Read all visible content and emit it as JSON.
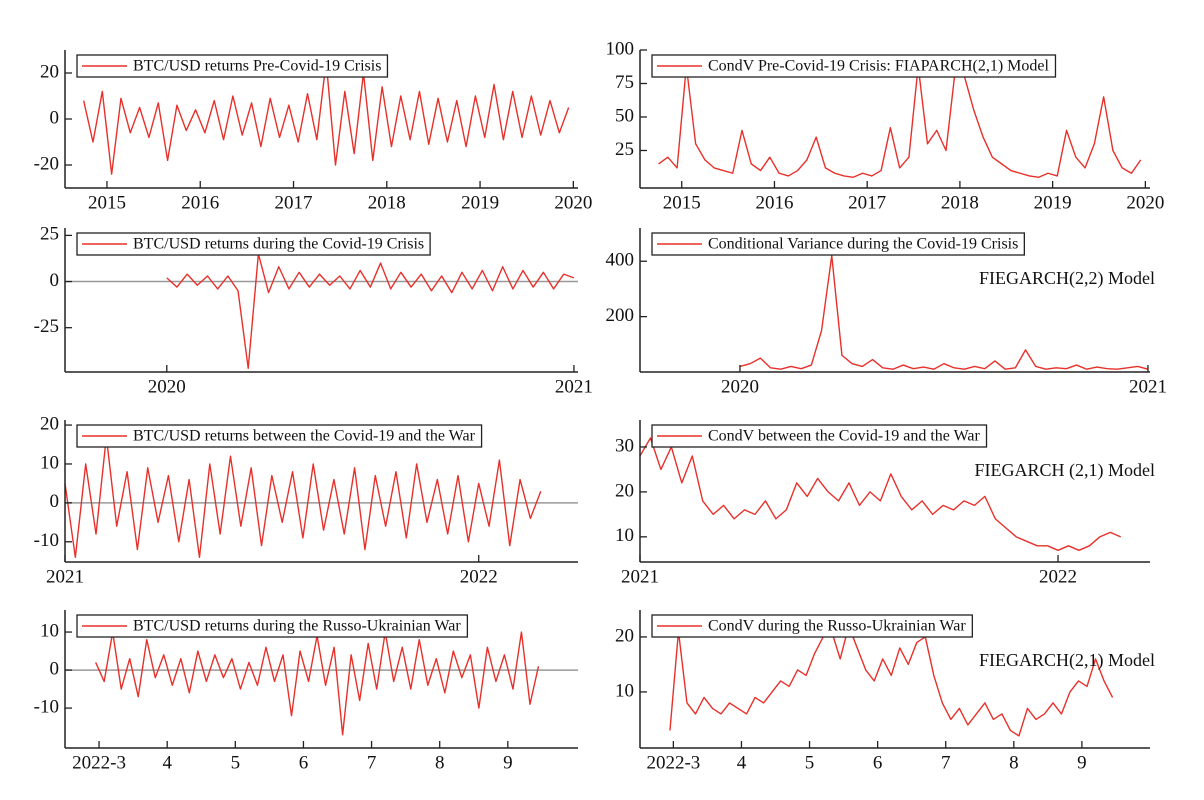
{
  "chart_data": [
    {
      "type": "line",
      "x": [
        2014.75,
        2014.85,
        2014.95,
        2015.05,
        2015.15,
        2015.25,
        2015.35,
        2015.45,
        2015.55,
        2015.65,
        2015.75,
        2015.85,
        2015.95,
        2016.05,
        2016.15,
        2016.25,
        2016.35,
        2016.45,
        2016.55,
        2016.65,
        2016.75,
        2016.85,
        2016.95,
        2017.05,
        2017.15,
        2017.25,
        2017.35,
        2017.45,
        2017.55,
        2017.65,
        2017.75,
        2017.85,
        2017.95,
        2018.05,
        2018.15,
        2018.25,
        2018.35,
        2018.45,
        2018.55,
        2018.65,
        2018.75,
        2018.85,
        2018.95,
        2019.05,
        2019.15,
        2019.25,
        2019.35,
        2019.45,
        2019.55,
        2019.65,
        2019.75,
        2019.85,
        2019.95
      ],
      "series": [
        {
          "name": "BTC/USD returns Pre-Covid-19 Crisis",
          "color": "#e8302a",
          "values": [
            8,
            -10,
            12,
            -24,
            9,
            -6,
            5,
            -8,
            7,
            -18,
            6,
            -5,
            4,
            -6,
            8,
            -9,
            10,
            -7,
            7,
            -12,
            9,
            -8,
            6,
            -10,
            11,
            -9,
            25,
            -20,
            12,
            -15,
            20,
            -18,
            14,
            -12,
            10,
            -9,
            12,
            -11,
            9,
            -10,
            8,
            -12,
            10,
            -8,
            15,
            -9,
            12,
            -8,
            10,
            -7,
            8,
            -6,
            5
          ]
        }
      ],
      "xlim": [
        2014.55,
        2020.05
      ],
      "xticks": [
        2015,
        2016,
        2017,
        2018,
        2019,
        2020
      ],
      "ylim": [
        -30,
        30
      ],
      "yticks": [
        -20,
        0,
        20
      ],
      "zero_line": false
    },
    {
      "type": "line",
      "x": [
        2014.75,
        2014.85,
        2014.95,
        2015.05,
        2015.15,
        2015.25,
        2015.35,
        2015.45,
        2015.55,
        2015.65,
        2015.75,
        2015.85,
        2015.95,
        2016.05,
        2016.15,
        2016.25,
        2016.35,
        2016.45,
        2016.55,
        2016.65,
        2016.75,
        2016.85,
        2016.95,
        2017.05,
        2017.15,
        2017.25,
        2017.35,
        2017.45,
        2017.55,
        2017.65,
        2017.75,
        2017.85,
        2017.95,
        2018.05,
        2018.15,
        2018.25,
        2018.35,
        2018.45,
        2018.55,
        2018.65,
        2018.75,
        2018.85,
        2018.95,
        2019.05,
        2019.15,
        2019.25,
        2019.35,
        2019.45,
        2019.55,
        2019.65,
        2019.75,
        2019.85,
        2019.95
      ],
      "series": [
        {
          "name": "CondV Pre-Covid-19 Crisis: FIAPARCH(2,1) Model",
          "color": "#e8302a",
          "values": [
            15,
            20,
            12,
            88,
            30,
            18,
            12,
            10,
            8,
            40,
            15,
            10,
            20,
            8,
            6,
            10,
            18,
            35,
            12,
            8,
            6,
            5,
            8,
            6,
            10,
            42,
            12,
            20,
            88,
            30,
            40,
            25,
            85,
            80,
            55,
            35,
            20,
            15,
            10,
            8,
            6,
            5,
            8,
            6,
            40,
            20,
            12,
            30,
            65,
            25,
            12,
            8,
            18
          ]
        }
      ],
      "xlim": [
        2014.55,
        2020.05
      ],
      "xticks": [
        2015,
        2016,
        2017,
        2018,
        2019,
        2020
      ],
      "ylim": [
        -3,
        100
      ],
      "yticks": [
        25,
        50,
        75,
        100
      ],
      "zero_line": false
    },
    {
      "type": "line",
      "x": [
        2020,
        2020.025,
        2020.05,
        2020.075,
        2020.1,
        2020.125,
        2020.15,
        2020.175,
        2020.2,
        2020.225,
        2020.25,
        2020.275,
        2020.3,
        2020.325,
        2020.35,
        2020.375,
        2020.4,
        2020.425,
        2020.45,
        2020.475,
        2020.5,
        2020.525,
        2020.55,
        2020.575,
        2020.6,
        2020.625,
        2020.65,
        2020.675,
        2020.7,
        2020.725,
        2020.75,
        2020.775,
        2020.8,
        2020.825,
        2020.85,
        2020.875,
        2020.9,
        2020.925,
        2020.95,
        2020.975,
        2021
      ],
      "series": [
        {
          "name": "BTC/USD returns during the Covid-19 Crisis",
          "color": "#e8302a",
          "values": [
            2,
            -3,
            4,
            -2,
            3,
            -4,
            3,
            -5,
            -47,
            15,
            -6,
            8,
            -4,
            5,
            -3,
            4,
            -2,
            3,
            -4,
            6,
            -3,
            10,
            -4,
            5,
            -3,
            4,
            -5,
            3,
            -6,
            5,
            -4,
            6,
            -5,
            8,
            -4,
            6,
            -3,
            5,
            -4,
            4,
            2
          ]
        }
      ],
      "xlim": [
        2019.75,
        2021.01
      ],
      "xticks": [
        2020,
        2021
      ],
      "ylim": [
        -49,
        29
      ],
      "yticks": [
        -25,
        0,
        25
      ],
      "zero_line": true
    },
    {
      "type": "line",
      "x": [
        2020,
        2020.025,
        2020.05,
        2020.075,
        2020.1,
        2020.125,
        2020.15,
        2020.175,
        2020.2,
        2020.225,
        2020.25,
        2020.275,
        2020.3,
        2020.325,
        2020.35,
        2020.375,
        2020.4,
        2020.425,
        2020.45,
        2020.475,
        2020.5,
        2020.525,
        2020.55,
        2020.575,
        2020.6,
        2020.625,
        2020.65,
        2020.675,
        2020.7,
        2020.725,
        2020.75,
        2020.775,
        2020.8,
        2020.825,
        2020.85,
        2020.875,
        2020.9,
        2020.925,
        2020.95,
        2020.975,
        2021
      ],
      "series": [
        {
          "name": "Conditional Variance during the Covid-19 Crisis",
          "color": "#e8302a",
          "values": [
            20,
            30,
            50,
            15,
            10,
            20,
            12,
            25,
            150,
            420,
            60,
            30,
            20,
            45,
            15,
            10,
            25,
            12,
            18,
            10,
            30,
            15,
            10,
            20,
            12,
            40,
            10,
            15,
            80,
            20,
            10,
            15,
            12,
            25,
            10,
            18,
            12,
            10,
            15,
            20,
            10
          ]
        }
      ],
      "annotation": "FIEGARCH(2,2) Model",
      "xlim": [
        2019.755,
        2021.005
      ],
      "xticks": [
        2020,
        2021
      ],
      "ylim": [
        0,
        520
      ],
      "yticks": [
        200,
        400
      ],
      "zero_line": false
    },
    {
      "type": "line",
      "x": [
        2021,
        2021.025,
        2021.05,
        2021.075,
        2021.1,
        2021.125,
        2021.15,
        2021.175,
        2021.2,
        2021.225,
        2021.25,
        2021.275,
        2021.3,
        2021.325,
        2021.35,
        2021.375,
        2021.4,
        2021.425,
        2021.45,
        2021.475,
        2021.5,
        2021.525,
        2021.55,
        2021.575,
        2021.6,
        2021.625,
        2021.65,
        2021.675,
        2021.7,
        2021.725,
        2021.75,
        2021.775,
        2021.8,
        2021.825,
        2021.85,
        2021.875,
        2021.9,
        2021.925,
        2021.95,
        2021.975,
        2022,
        2022.025,
        2022.05,
        2022.075,
        2022.1,
        2022.125,
        2022.15
      ],
      "series": [
        {
          "name": "BTC/USD returns between the Covid-19 and the War",
          "color": "#e8302a",
          "values": [
            5,
            -14,
            10,
            -8,
            17,
            -6,
            8,
            -12,
            9,
            -5,
            7,
            -10,
            6,
            -14,
            10,
            -8,
            12,
            -6,
            9,
            -11,
            7,
            -5,
            8,
            -9,
            10,
            -7,
            6,
            -8,
            9,
            -12,
            7,
            -6,
            8,
            -9,
            10,
            -5,
            6,
            -8,
            7,
            -10,
            5,
            -6,
            11,
            -11,
            6,
            -4,
            3
          ]
        }
      ],
      "xlim": [
        2021,
        2022.24
      ],
      "xticks": [
        2021,
        2022
      ],
      "ylim": [
        -15.2,
        21.3
      ],
      "yticks": [
        -10,
        0,
        10,
        20
      ],
      "zero_line": true
    },
    {
      "type": "line",
      "x": [
        2021,
        2021.025,
        2021.05,
        2021.075,
        2021.1,
        2021.125,
        2021.15,
        2021.175,
        2021.2,
        2021.225,
        2021.25,
        2021.275,
        2021.3,
        2021.325,
        2021.35,
        2021.375,
        2021.4,
        2021.425,
        2021.45,
        2021.475,
        2021.5,
        2021.525,
        2021.55,
        2021.575,
        2021.6,
        2021.625,
        2021.65,
        2021.675,
        2021.7,
        2021.725,
        2021.75,
        2021.775,
        2021.8,
        2021.825,
        2021.85,
        2021.875,
        2021.9,
        2021.925,
        2021.95,
        2021.975,
        2022,
        2022.025,
        2022.05,
        2022.075,
        2022.1,
        2022.125,
        2022.15
      ],
      "series": [
        {
          "name": "CondV between the Covid-19 and the War",
          "color": "#e8302a",
          "values": [
            28,
            32,
            25,
            30,
            22,
            28,
            18,
            15,
            17,
            14,
            16,
            15,
            18,
            14,
            16,
            22,
            19,
            23,
            20,
            18,
            22,
            17,
            20,
            18,
            24,
            19,
            16,
            18,
            15,
            17,
            16,
            18,
            17,
            19,
            14,
            12,
            10,
            9,
            8,
            8,
            7,
            8,
            7,
            8,
            10,
            11,
            10
          ]
        }
      ],
      "annotation": "FIEGARCH (2,1) Model",
      "xlim": [
        2021,
        2022.22
      ],
      "xticks": [
        2021,
        2022
      ],
      "ylim": [
        4.4,
        36
      ],
      "yticks": [
        10,
        20,
        30
      ],
      "zero_line": false
    },
    {
      "type": "line",
      "x": [
        2.95,
        3.075,
        3.2,
        3.325,
        3.45,
        3.575,
        3.7,
        3.825,
        3.95,
        4.075,
        4.2,
        4.325,
        4.45,
        4.575,
        4.7,
        4.825,
        4.95,
        5.075,
        5.2,
        5.325,
        5.45,
        5.575,
        5.7,
        5.825,
        5.95,
        6.075,
        6.2,
        6.325,
        6.45,
        6.575,
        6.7,
        6.825,
        6.95,
        7.075,
        7.2,
        7.325,
        7.45,
        7.575,
        7.7,
        7.825,
        7.95,
        8.075,
        8.2,
        8.325,
        8.45,
        8.575,
        8.7,
        8.825,
        8.95,
        9.075,
        9.2,
        9.325,
        9.45
      ],
      "series": [
        {
          "name": "BTC/USD returns during the Russo-Ukrainian War",
          "color": "#e8302a",
          "values": [
            2,
            -3,
            10,
            -5,
            3,
            -7,
            8,
            -2,
            4,
            -4,
            3,
            -6,
            5,
            -3,
            4,
            -2,
            3,
            -5,
            2,
            -4,
            6,
            -3,
            4,
            -12,
            5,
            -3,
            9,
            -4,
            6,
            -17,
            4,
            -8,
            7,
            -5,
            10,
            -3,
            6,
            -5,
            8,
            -4,
            3,
            -6,
            5,
            -2,
            4,
            -10,
            6,
            -3,
            4,
            -5,
            10,
            -9,
            1
          ]
        }
      ],
      "xlim": [
        2.5,
        10.03
      ],
      "xticks": [
        {
          "value": 3,
          "label": "2022-3"
        },
        4,
        5,
        6,
        7,
        8,
        9
      ],
      "ylim": [
        -20.5,
        15.8
      ],
      "yticks": [
        -10,
        0,
        10
      ],
      "zero_line": true
    },
    {
      "type": "line",
      "x": [
        2.95,
        3.075,
        3.2,
        3.325,
        3.45,
        3.575,
        3.7,
        3.825,
        3.95,
        4.075,
        4.2,
        4.325,
        4.45,
        4.575,
        4.7,
        4.825,
        4.95,
        5.075,
        5.2,
        5.325,
        5.45,
        5.575,
        5.7,
        5.825,
        5.95,
        6.075,
        6.2,
        6.325,
        6.45,
        6.575,
        6.7,
        6.825,
        6.95,
        7.075,
        7.2,
        7.325,
        7.45,
        7.575,
        7.7,
        7.825,
        7.95,
        8.075,
        8.2,
        8.325,
        8.45,
        8.575,
        8.7,
        8.825,
        8.95,
        9.075,
        9.2,
        9.325,
        9.45
      ],
      "series": [
        {
          "name": "CondV during the Russo-Ukrainian War",
          "color": "#e8302a",
          "values": [
            3,
            21,
            8,
            6,
            9,
            7,
            6,
            8,
            7,
            6,
            9,
            8,
            10,
            12,
            11,
            14,
            13,
            17,
            20,
            21,
            16,
            22,
            18,
            14,
            12,
            16,
            13,
            18,
            15,
            19,
            20,
            13,
            8,
            5,
            7,
            4,
            6,
            8,
            5,
            6,
            3,
            2,
            7,
            5,
            6,
            8,
            6,
            10,
            12,
            11,
            16,
            12,
            9
          ]
        }
      ],
      "annotation": "FIEGARCH(2,1) Model",
      "xlim": [
        2.51,
        10.0
      ],
      "xticks": [
        {
          "value": 3,
          "label": "2022-3"
        },
        4,
        5,
        6,
        7,
        8,
        9
      ],
      "ylim": [
        -0.2,
        24.9
      ],
      "yticks": [
        10,
        20
      ],
      "zero_line": false
    }
  ]
}
